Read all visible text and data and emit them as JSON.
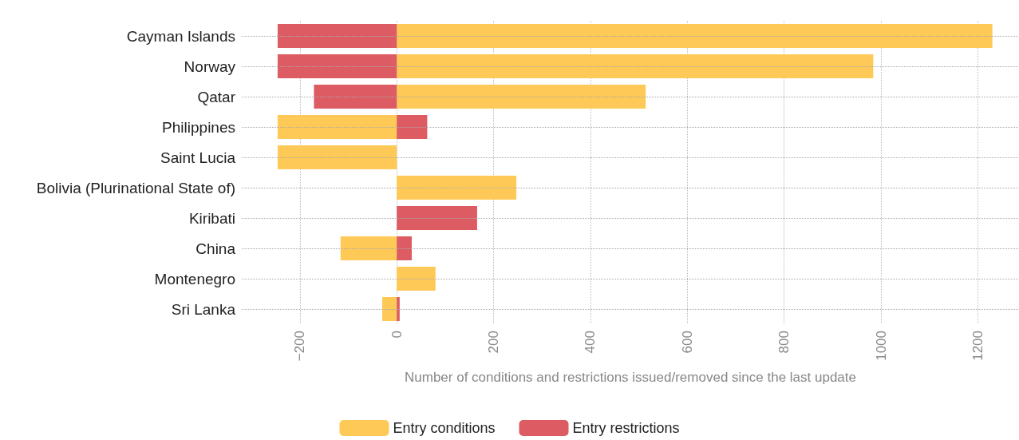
{
  "chart_data": {
    "type": "bar",
    "orientation": "horizontal",
    "stacked": true,
    "xlabel": "Number of conditions and restrictions issued/removed since the last update",
    "categories": [
      "Cayman Islands",
      "Norway",
      "Qatar",
      "Philippines",
      "Saint Lucia",
      "Bolivia (Plurinational State of)",
      "Kiribati",
      "China",
      "Montenegro",
      "Sri Lanka"
    ],
    "series": [
      {
        "name": "Entry conditions",
        "color": "#fec956",
        "values": [
          1230,
          984,
          514,
          -246,
          -246,
          247,
          null,
          -116,
          80,
          -30
        ]
      },
      {
        "name": "Entry restrictions",
        "color": "#dd5b63",
        "values": [
          -246,
          -246,
          -171,
          63,
          null,
          null,
          166,
          31,
          null,
          6
        ]
      }
    ],
    "xlim": [
      -320,
      1285
    ],
    "xticks": [
      {
        "value": -200,
        "label": "−200"
      },
      0,
      200,
      400,
      600,
      800,
      1000,
      1200
    ],
    "grid": true,
    "legend": "bottom"
  }
}
